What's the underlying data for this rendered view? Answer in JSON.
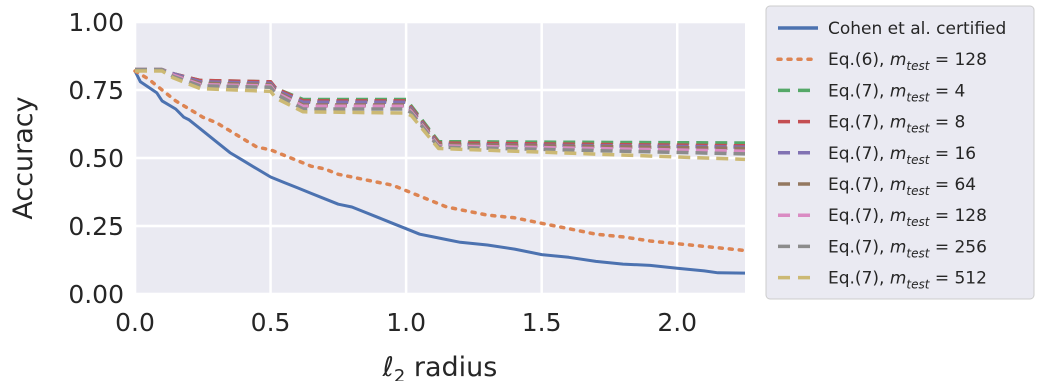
{
  "chart_data": {
    "type": "line",
    "xlabel": "ℓ2 radius",
    "ylabel": "Accuracy",
    "xlim": [
      0,
      2.25
    ],
    "ylim": [
      0,
      1.0
    ],
    "xticks": [
      "0.0",
      "0.5",
      "1.0",
      "1.5",
      "2.0"
    ],
    "yticks": [
      "0.00",
      "0.25",
      "0.50",
      "0.75",
      "1.00"
    ],
    "grid": true,
    "legend_position": "right-outside",
    "series": [
      {
        "name": "Cohen et al. certified",
        "label_prefix": "Cohen et al. certified",
        "label_sub": "",
        "label_value": "",
        "color": "#4c72b0",
        "style": "solid",
        "x": [
          0,
          0.02,
          0.05,
          0.08,
          0.1,
          0.15,
          0.18,
          0.2,
          0.25,
          0.3,
          0.35,
          0.4,
          0.45,
          0.5,
          0.55,
          0.6,
          0.65,
          0.7,
          0.75,
          0.8,
          0.85,
          0.9,
          0.95,
          1.0,
          1.05,
          1.1,
          1.15,
          1.2,
          1.3,
          1.4,
          1.5,
          1.6,
          1.7,
          1.8,
          1.9,
          2.0,
          2.1,
          2.15,
          2.25
        ],
        "y": [
          0.82,
          0.78,
          0.76,
          0.74,
          0.71,
          0.68,
          0.65,
          0.64,
          0.6,
          0.56,
          0.52,
          0.49,
          0.46,
          0.43,
          0.41,
          0.39,
          0.37,
          0.35,
          0.33,
          0.32,
          0.3,
          0.28,
          0.26,
          0.24,
          0.22,
          0.21,
          0.2,
          0.19,
          0.18,
          0.165,
          0.145,
          0.135,
          0.12,
          0.11,
          0.105,
          0.095,
          0.085,
          0.078,
          0.077
        ]
      },
      {
        "name": "Eq.(6), m_test = 128",
        "label_prefix": "Eq.(6), ",
        "label_sub": "test",
        "label_value": " = 128",
        "color": "#dd8452",
        "style": "dotted",
        "x": [
          0,
          0.05,
          0.1,
          0.15,
          0.2,
          0.25,
          0.3,
          0.35,
          0.4,
          0.45,
          0.5,
          0.55,
          0.6,
          0.65,
          0.7,
          0.75,
          0.8,
          0.85,
          0.9,
          0.95,
          1.0,
          1.05,
          1.1,
          1.15,
          1.2,
          1.3,
          1.4,
          1.5,
          1.6,
          1.7,
          1.8,
          1.9,
          2.0,
          2.1,
          2.25
        ],
        "y": [
          0.82,
          0.79,
          0.75,
          0.71,
          0.68,
          0.65,
          0.63,
          0.6,
          0.57,
          0.54,
          0.53,
          0.51,
          0.49,
          0.47,
          0.46,
          0.44,
          0.43,
          0.42,
          0.41,
          0.4,
          0.38,
          0.36,
          0.34,
          0.32,
          0.31,
          0.29,
          0.28,
          0.26,
          0.24,
          0.22,
          0.21,
          0.195,
          0.185,
          0.175,
          0.16
        ]
      },
      {
        "name": "Eq.(7), m_test = 4",
        "label_prefix": "Eq.(7), ",
        "label_sub": "test",
        "label_value": " = 4",
        "color": "#55a868",
        "style": "dashed",
        "x": [
          0,
          0.1,
          0.14,
          0.24,
          0.5,
          0.52,
          0.62,
          1.0,
          1.02,
          1.12,
          2.25
        ],
        "y": [
          0.825,
          0.825,
          0.81,
          0.785,
          0.78,
          0.755,
          0.715,
          0.715,
          0.69,
          0.56,
          0.555
        ]
      },
      {
        "name": "Eq.(7), m_test = 8",
        "label_prefix": "Eq.(7), ",
        "label_sub": "test",
        "label_value": " = 8",
        "color": "#c44e52",
        "style": "dashed",
        "x": [
          0,
          0.1,
          0.14,
          0.24,
          0.5,
          0.52,
          0.62,
          1.0,
          1.02,
          1.12,
          2.25
        ],
        "y": [
          0.825,
          0.825,
          0.81,
          0.785,
          0.78,
          0.755,
          0.71,
          0.71,
          0.685,
          0.555,
          0.545
        ]
      },
      {
        "name": "Eq.(7), m_test = 16",
        "label_prefix": "Eq.(7), ",
        "label_sub": "test",
        "label_value": " = 16",
        "color": "#8172b3",
        "style": "dashed",
        "x": [
          0,
          0.1,
          0.14,
          0.24,
          0.5,
          0.52,
          0.62,
          1.0,
          1.02,
          1.12,
          2.25
        ],
        "y": [
          0.825,
          0.825,
          0.81,
          0.78,
          0.775,
          0.75,
          0.705,
          0.705,
          0.68,
          0.55,
          0.54
        ]
      },
      {
        "name": "Eq.(7), m_test = 64",
        "label_prefix": "Eq.(7), ",
        "label_sub": "test",
        "label_value": " = 64",
        "color": "#937860",
        "style": "dashed",
        "x": [
          0,
          0.1,
          0.14,
          0.24,
          0.5,
          0.52,
          0.62,
          1.0,
          1.02,
          1.12,
          2.25
        ],
        "y": [
          0.825,
          0.825,
          0.805,
          0.775,
          0.77,
          0.745,
          0.695,
          0.695,
          0.675,
          0.55,
          0.535
        ]
      },
      {
        "name": "Eq.(7), m_test = 128",
        "label_prefix": "Eq.(7), ",
        "label_sub": "test",
        "label_value": " = 128",
        "color": "#da8bc3",
        "style": "dashed",
        "x": [
          0,
          0.1,
          0.14,
          0.24,
          0.5,
          0.52,
          0.62,
          1.0,
          1.02,
          1.12,
          2.25
        ],
        "y": [
          0.825,
          0.825,
          0.805,
          0.77,
          0.765,
          0.74,
          0.69,
          0.69,
          0.67,
          0.545,
          0.525
        ]
      },
      {
        "name": "Eq.(7), m_test = 256",
        "label_prefix": "Eq.(7), ",
        "label_sub": "test",
        "label_value": " = 256",
        "color": "#8c8c8c",
        "style": "dashed",
        "x": [
          0,
          0.1,
          0.14,
          0.24,
          0.5,
          0.52,
          0.62,
          1.0,
          1.02,
          1.12,
          2.25
        ],
        "y": [
          0.825,
          0.825,
          0.8,
          0.765,
          0.76,
          0.735,
          0.68,
          0.68,
          0.665,
          0.54,
          0.515
        ]
      },
      {
        "name": "Eq.(7), m_test = 512",
        "label_prefix": "Eq.(7), ",
        "label_sub": "test",
        "label_value": " = 512",
        "color": "#ccb974",
        "style": "dashed",
        "x": [
          0,
          0.1,
          0.14,
          0.24,
          0.5,
          0.52,
          0.62,
          1.0,
          1.02,
          1.12,
          2.25
        ],
        "y": [
          0.82,
          0.82,
          0.795,
          0.755,
          0.745,
          0.72,
          0.67,
          0.665,
          0.655,
          0.535,
          0.495
        ]
      }
    ]
  }
}
